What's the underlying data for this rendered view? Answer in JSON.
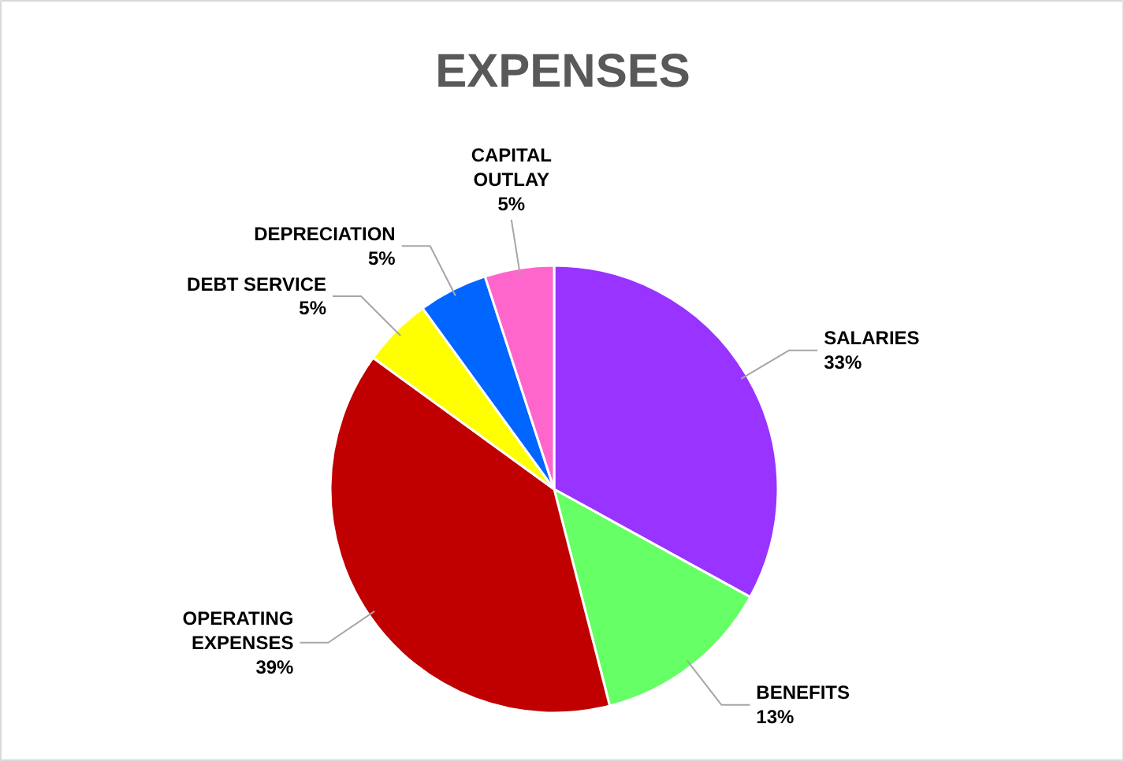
{
  "chart_data": {
    "type": "pie",
    "title": "EXPENSES",
    "categories": [
      "SALARIES",
      "BENEFITS",
      "OPERATING EXPENSES",
      "DEBT SERVICE",
      "DEPRECIATION",
      "CAPITAL OUTLAY"
    ],
    "values": [
      33,
      13,
      39,
      5,
      5,
      5
    ],
    "colors": [
      "#9933ff",
      "#66ff66",
      "#c00000",
      "#ffff00",
      "#0066ff",
      "#ff66cc"
    ],
    "value_labels": [
      "33%",
      "13%",
      "39%",
      "5%",
      "5%",
      "5%"
    ]
  }
}
